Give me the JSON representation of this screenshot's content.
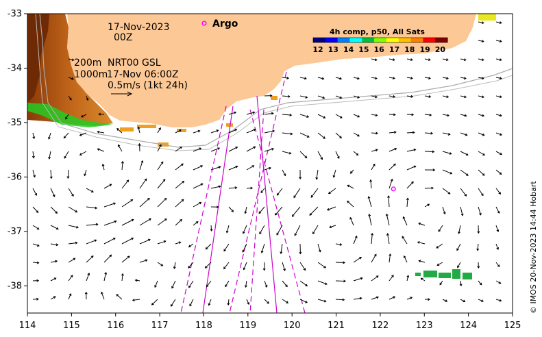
{
  "map": {
    "date_line1": "17-Nov-2023",
    "date_line2": "00Z",
    "depth_label_1": "200m",
    "depth_label_2": "1000m",
    "product_label": "NRT00 GSL",
    "product_time": "17-Nov 06:00Z",
    "scale_label": "0.5m/s (1kt 24h)",
    "argo_label": "Argo",
    "credit": "© IMOS 20-Nov-2023 14:44 Hobart"
  },
  "colorbar": {
    "title": "4h comp, p50, All Sats",
    "ticks": [
      "12",
      "13",
      "14",
      "15",
      "16",
      "17",
      "18",
      "19",
      "20"
    ],
    "colors": [
      "#00007f",
      "#0000ff",
      "#0080ff",
      "#00ffff",
      "#00c040",
      "#80ff00",
      "#ffff00",
      "#ffc000",
      "#ff8000",
      "#ff0000",
      "#7f0000"
    ]
  },
  "axes": {
    "x_ticks": [
      "114",
      "115",
      "116",
      "117",
      "118",
      "119",
      "120",
      "121",
      "122",
      "123",
      "124",
      "125"
    ],
    "y_ticks": [
      "-33",
      "-34",
      "-35",
      "-36",
      "-37",
      "-38"
    ],
    "x_range": [
      114,
      125
    ],
    "y_range": [
      -38.5,
      -33
    ]
  },
  "colors": {
    "land": "#fcc896",
    "argo": "#ff00ff",
    "track": "#cc00cc",
    "sst_warm": "#b85a10",
    "sst_green": "#22cc22"
  },
  "argo_floats": [
    {
      "lon": 118.0,
      "lat": -33.17
    },
    {
      "lon": 122.3,
      "lat": -36.22
    }
  ]
}
